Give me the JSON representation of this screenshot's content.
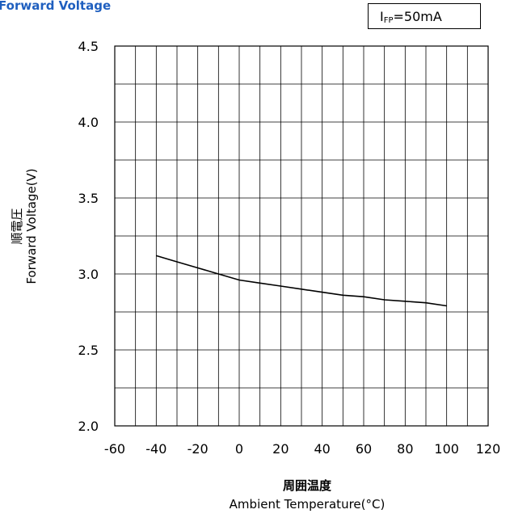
{
  "title": "Forward Voltage",
  "condition": {
    "symbol": "I",
    "subscript": "FP",
    "value": "=50mA"
  },
  "chart_data": {
    "type": "line",
    "title": "Forward Voltage",
    "xlabel_jp": "周囲温度",
    "xlabel": "Ambient Temperature(°C)",
    "ylabel_jp": "順電圧",
    "ylabel": "Forward Voltage(V)",
    "xlim": [
      -60,
      120
    ],
    "ylim": [
      2.0,
      4.5
    ],
    "x_ticks": [
      "-60",
      "-40",
      "-20",
      "0",
      "20",
      "40",
      "60",
      "80",
      "100",
      "120"
    ],
    "y_ticks": [
      "2.0",
      "2.5",
      "3.0",
      "3.5",
      "4.0",
      "4.5"
    ],
    "grid": true,
    "series": [
      {
        "x": [
          -40,
          -30,
          -20,
          -10,
          0,
          10,
          20,
          30,
          40,
          50,
          60,
          70,
          80,
          90,
          100
        ],
        "y": [
          3.12,
          3.08,
          3.04,
          3.0,
          2.96,
          2.94,
          2.92,
          2.9,
          2.88,
          2.86,
          2.85,
          2.83,
          2.82,
          2.81,
          2.79
        ]
      }
    ]
  }
}
